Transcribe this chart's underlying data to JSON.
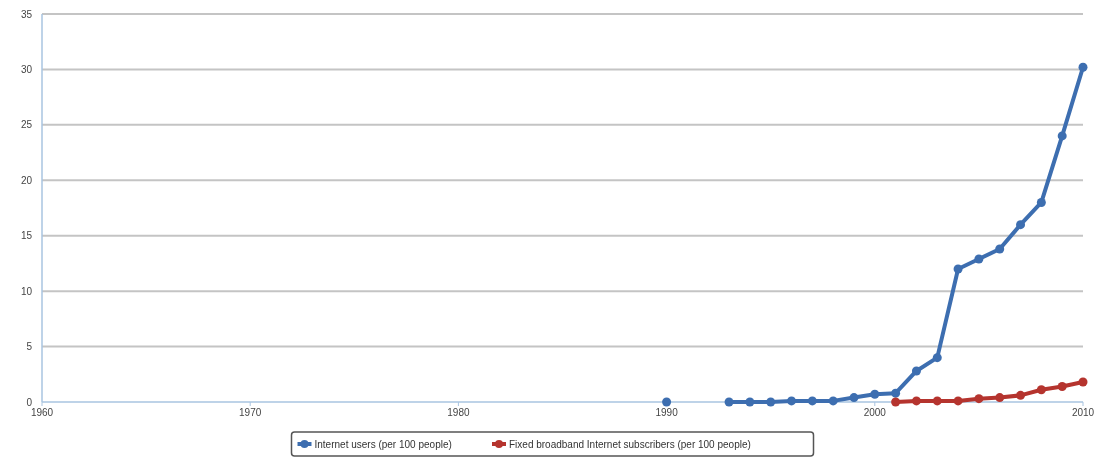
{
  "chart_data": {
    "type": "line",
    "xlim": [
      1960,
      2010
    ],
    "xticks": [
      1960,
      1970,
      1980,
      1990,
      2000,
      2010
    ],
    "ylim": [
      0,
      35
    ],
    "yticks": [
      0,
      5,
      10,
      15,
      20,
      25,
      30,
      35
    ],
    "grid": "y",
    "legend": "bottom",
    "marker": "circle",
    "line_style": "solid",
    "series": [
      {
        "name": "Internet users (per 100 people)",
        "color": "#3d6eb0",
        "x": [
          1990,
          1991,
          1992,
          1993,
          1994,
          1995,
          1996,
          1997,
          1998,
          1999,
          2000,
          2001,
          2002,
          2003,
          2004,
          2005,
          2006,
          2007,
          2008,
          2009,
          2010
        ],
        "values": [
          0,
          null,
          null,
          0,
          0,
          0,
          0.1,
          0.1,
          0.1,
          0.4,
          0.7,
          0.8,
          2.8,
          4,
          12,
          12.9,
          13.8,
          16,
          18,
          24,
          30.2
        ]
      },
      {
        "name": "Fixed broadband Internet subscribers (per 100 people)",
        "color": "#b5342e",
        "x": [
          2001,
          2002,
          2003,
          2004,
          2005,
          2006,
          2007,
          2008,
          2009,
          2010
        ],
        "values": [
          0,
          0.1,
          0.1,
          0.1,
          0.3,
          0.4,
          0.6,
          1.1,
          1.4,
          1.8
        ]
      }
    ]
  }
}
